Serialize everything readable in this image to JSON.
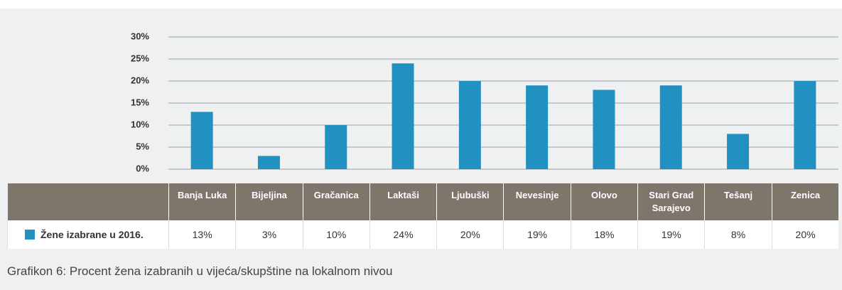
{
  "chart_data": {
    "type": "bar",
    "caption": "Grafikon 6: Procent žena izabranih u vijeća/skupštine na lokalnom nivou",
    "categories": [
      "Banja Luka",
      "Bijeljina",
      "Gračanica",
      "Laktaši",
      "Ljubuški",
      "Nevesinje",
      "Olovo",
      "Stari Grad Sarajevo",
      "Tešanj",
      "Zenica"
    ],
    "series": [
      {
        "name": "Žene izabrane u 2016.",
        "color": "#2191c2",
        "values": [
          13,
          3,
          10,
          24,
          20,
          19,
          18,
          19,
          8,
          20
        ],
        "value_labels": [
          "13%",
          "3%",
          "10%",
          "24%",
          "20%",
          "19%",
          "18%",
          "19%",
          "8%",
          "20%"
        ]
      }
    ],
    "ylim": [
      0,
      30
    ],
    "yticks": [
      {
        "value": 0,
        "label": "0%"
      },
      {
        "value": 5,
        "label": "5%"
      },
      {
        "value": 10,
        "label": "10%"
      },
      {
        "value": 15,
        "label": "15%"
      },
      {
        "value": 20,
        "label": "20%"
      },
      {
        "value": 25,
        "label": "25%"
      },
      {
        "value": 30,
        "label": "30%"
      }
    ],
    "grid": true
  }
}
